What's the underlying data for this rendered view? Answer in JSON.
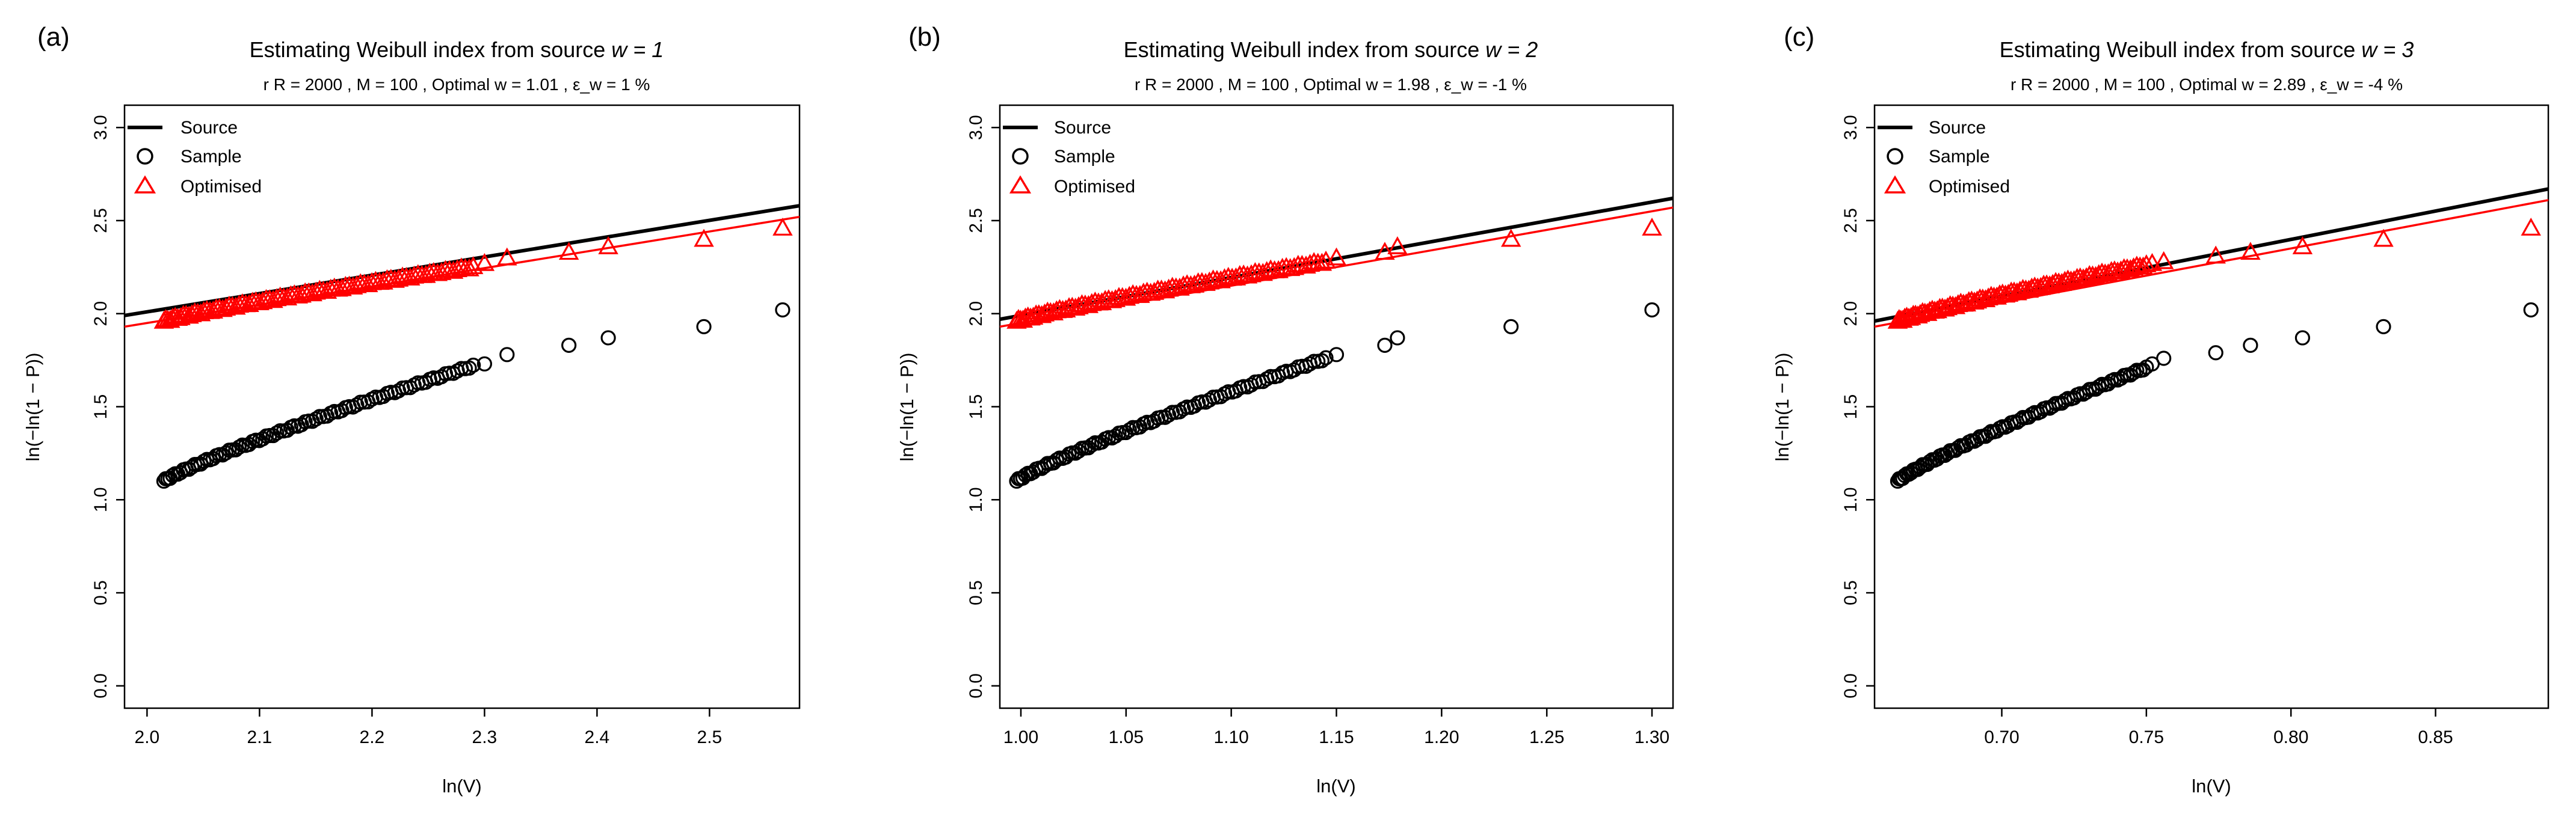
{
  "figure": {
    "panels": [
      {
        "letter": "(a)",
        "title": "Estimating Weibull index from source",
        "w_label": "w = 1",
        "subtitle": "r R = 2000 ,  M = 100 , Optimal  w = 1.01 ,  ε_w = 1 %"
      },
      {
        "letter": "(b)",
        "title": "Estimating Weibull index from source",
        "w_label": "w = 2",
        "subtitle": "r R = 2000 ,  M = 100 , Optimal  w = 1.98 ,  ε_w = -1 %"
      },
      {
        "letter": "(c)",
        "title": "Estimating Weibull index from source",
        "w_label": "w = 3",
        "subtitle": "r R = 2000 ,  M = 100 , Optimal  w = 2.89 ,  ε_w = -4 %"
      }
    ],
    "legend": {
      "source": "Source",
      "sample": "Sample",
      "optimised": "Optimised"
    },
    "colors": {
      "source": "#000000",
      "sample": "#000000",
      "optimised": "#ff0000"
    }
  },
  "chart_data": [
    {
      "type": "scatter",
      "title": "Estimating Weibull index from source w = 1",
      "xlabel": "ln(V)",
      "ylabel": "ln(−ln(1 − P))",
      "xlim": [
        1.98,
        2.58
      ],
      "ylim": [
        -0.12,
        3.12
      ],
      "xticks": [
        {
          "v": 2.0,
          "label": "2.0"
        },
        {
          "v": 2.1,
          "label": "2.1"
        },
        {
          "v": 2.2,
          "label": "2.2"
        },
        {
          "v": 2.3,
          "label": "2.3"
        },
        {
          "v": 2.4,
          "label": "2.4"
        },
        {
          "v": 2.5,
          "label": "2.5"
        }
      ],
      "yticks": [
        {
          "v": 0.0,
          "label": "0.0"
        },
        {
          "v": 0.5,
          "label": "0.5"
        },
        {
          "v": 1.0,
          "label": "1.0"
        },
        {
          "v": 1.5,
          "label": "1.5"
        },
        {
          "v": 2.0,
          "label": "2.0"
        },
        {
          "v": 2.5,
          "label": "2.5"
        },
        {
          "v": 3.0,
          "label": "3.0"
        }
      ],
      "source_line": {
        "x0": 1.98,
        "y0": 1.99,
        "x1": 2.58,
        "y1": 2.58
      },
      "optimised_line": {
        "x0": 1.98,
        "y0": 1.93,
        "x1": 2.58,
        "y1": 2.52
      },
      "sample": {
        "dense_from": [
          2.015,
          1.1
        ],
        "dense_to": [
          2.29,
          1.72
        ],
        "dense_count": 90,
        "tail": [
          [
            2.3,
            1.73
          ],
          [
            2.32,
            1.78
          ],
          [
            2.375,
            1.83
          ],
          [
            2.41,
            1.87
          ],
          [
            2.495,
            1.93
          ],
          [
            2.565,
            2.02
          ]
        ]
      },
      "optimised": {
        "dense_from": [
          2.015,
          1.96
        ],
        "dense_to": [
          2.29,
          2.25
        ],
        "dense_count": 90,
        "tail": [
          [
            2.3,
            2.27
          ],
          [
            2.32,
            2.3
          ],
          [
            2.375,
            2.33
          ],
          [
            2.41,
            2.36
          ],
          [
            2.495,
            2.4
          ],
          [
            2.565,
            2.46
          ]
        ]
      }
    },
    {
      "type": "scatter",
      "title": "Estimating Weibull index from source w = 2",
      "xlabel": "ln(V)",
      "ylabel": "ln(−ln(1 − P))",
      "xlim": [
        0.99,
        1.31
      ],
      "ylim": [
        -0.12,
        3.12
      ],
      "xticks": [
        {
          "v": 1.0,
          "label": "1.00"
        },
        {
          "v": 1.05,
          "label": "1.05"
        },
        {
          "v": 1.1,
          "label": "1.10"
        },
        {
          "v": 1.15,
          "label": "1.15"
        },
        {
          "v": 1.2,
          "label": "1.20"
        },
        {
          "v": 1.25,
          "label": "1.25"
        },
        {
          "v": 1.3,
          "label": "1.30"
        }
      ],
      "yticks": [
        {
          "v": 0.0,
          "label": "0.0"
        },
        {
          "v": 0.5,
          "label": "0.5"
        },
        {
          "v": 1.0,
          "label": "1.0"
        },
        {
          "v": 1.5,
          "label": "1.5"
        },
        {
          "v": 2.0,
          "label": "2.0"
        },
        {
          "v": 2.5,
          "label": "2.5"
        },
        {
          "v": 3.0,
          "label": "3.0"
        }
      ],
      "source_line": {
        "x0": 0.99,
        "y0": 1.97,
        "x1": 1.31,
        "y1": 2.62
      },
      "optimised_line": {
        "x0": 0.99,
        "y0": 1.93,
        "x1": 1.31,
        "y1": 2.57
      },
      "sample": {
        "dense_from": [
          0.998,
          1.1
        ],
        "dense_to": [
          1.145,
          1.76
        ],
        "dense_count": 90,
        "tail": [
          [
            1.15,
            1.78
          ],
          [
            1.173,
            1.83
          ],
          [
            1.179,
            1.87
          ],
          [
            1.233,
            1.93
          ],
          [
            1.3,
            2.02
          ]
        ]
      },
      "optimised": {
        "dense_from": [
          0.998,
          1.96
        ],
        "dense_to": [
          1.145,
          2.28
        ],
        "dense_count": 90,
        "tail": [
          [
            1.15,
            2.3
          ],
          [
            1.173,
            2.33
          ],
          [
            1.179,
            2.36
          ],
          [
            1.233,
            2.4
          ],
          [
            1.3,
            2.46
          ]
        ]
      }
    },
    {
      "type": "scatter",
      "title": "Estimating Weibull index from source w = 3",
      "xlabel": "ln(V)",
      "ylabel": "ln(−ln(1 − P))",
      "xlim": [
        0.656,
        0.889
      ],
      "ylim": [
        -0.12,
        3.12
      ],
      "xticks": [
        {
          "v": 0.7,
          "label": "0.70"
        },
        {
          "v": 0.75,
          "label": "0.75"
        },
        {
          "v": 0.8,
          "label": "0.80"
        },
        {
          "v": 0.85,
          "label": "0.85"
        }
      ],
      "yticks": [
        {
          "v": 0.0,
          "label": "0.0"
        },
        {
          "v": 0.5,
          "label": "0.5"
        },
        {
          "v": 1.0,
          "label": "1.0"
        },
        {
          "v": 1.5,
          "label": "1.5"
        },
        {
          "v": 2.0,
          "label": "2.0"
        },
        {
          "v": 2.5,
          "label": "2.5"
        },
        {
          "v": 3.0,
          "label": "3.0"
        }
      ],
      "source_line": {
        "x0": 0.656,
        "y0": 1.96,
        "x1": 0.889,
        "y1": 2.67
      },
      "optimised_line": {
        "x0": 0.656,
        "y0": 1.93,
        "x1": 0.889,
        "y1": 2.61
      },
      "sample": {
        "dense_from": [
          0.664,
          1.1
        ],
        "dense_to": [
          0.75,
          1.71
        ],
        "dense_count": 90,
        "tail": [
          [
            0.752,
            1.73
          ],
          [
            0.756,
            1.76
          ],
          [
            0.774,
            1.79
          ],
          [
            0.786,
            1.83
          ],
          [
            0.804,
            1.87
          ],
          [
            0.832,
            1.93
          ],
          [
            0.883,
            2.02
          ]
        ]
      },
      "optimised": {
        "dense_from": [
          0.664,
          1.96
        ],
        "dense_to": [
          0.75,
          2.26
        ],
        "dense_count": 90,
        "tail": [
          [
            0.752,
            2.27
          ],
          [
            0.756,
            2.28
          ],
          [
            0.774,
            2.31
          ],
          [
            0.786,
            2.33
          ],
          [
            0.804,
            2.36
          ],
          [
            0.832,
            2.4
          ],
          [
            0.883,
            2.46
          ]
        ]
      }
    }
  ]
}
